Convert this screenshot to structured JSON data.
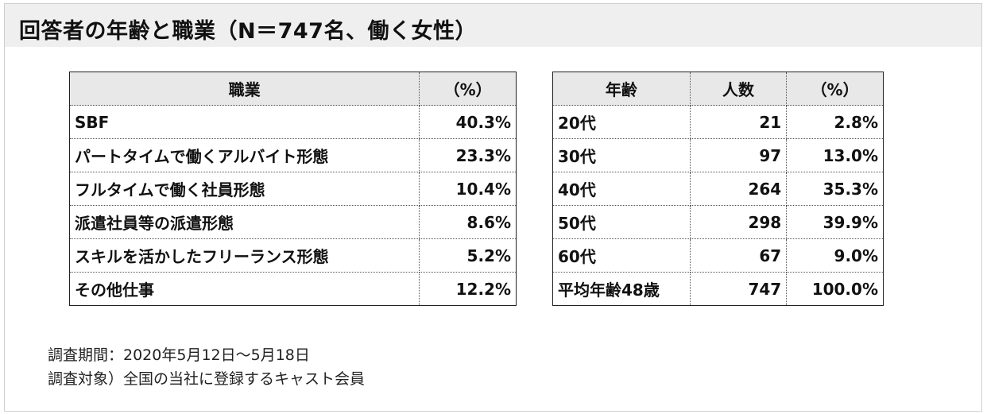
{
  "title": "回答者の年齢と職業（N＝747名、働く女性）",
  "occupation_table": {
    "headers": [
      "職業",
      "（%）"
    ],
    "rows": [
      [
        "SBF",
        "40.3%"
      ],
      [
        "パートタイムで働くアルバイト形態",
        "23.3%"
      ],
      [
        "フルタイムで働く社員形態",
        "10.4%"
      ],
      [
        "派遣社員等の派遣形態",
        "8.6%"
      ],
      [
        "スキルを活かしたフリーランス形態",
        "5.2%"
      ],
      [
        "その他仕事",
        "12.2%"
      ]
    ]
  },
  "age_table": {
    "headers": [
      "年齢",
      "人数",
      "（%）"
    ],
    "rows": [
      [
        "20代",
        "21",
        "2.8%"
      ],
      [
        "30代",
        "97",
        "13.0%"
      ],
      [
        "40代",
        "264",
        "35.3%"
      ],
      [
        "50代",
        "298",
        "39.9%"
      ],
      [
        "60代",
        "67",
        "9.0%"
      ],
      [
        "平均年齢48歳",
        "747",
        "100.0%"
      ]
    ]
  },
  "notes": [
    "調査期間：2020年5月12日～5月18日",
    "調査対象）全国の当社に登録するキャスト会員"
  ]
}
